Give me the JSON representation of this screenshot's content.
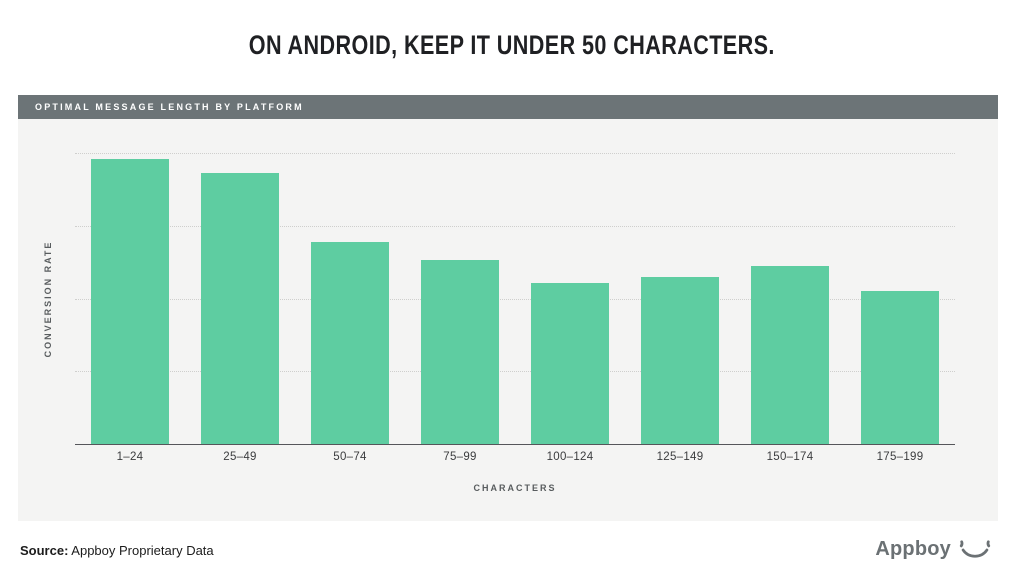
{
  "title": "ON ANDROID, KEEP IT UNDER 50 CHARACTERS.",
  "panel": {
    "header": "OPTIMAL MESSAGE LENGTH BY PLATFORM"
  },
  "chart_data": {
    "type": "bar",
    "title": "Optimal Message Length by Platform",
    "categories": [
      "1–24",
      "25–49",
      "50–74",
      "75–99",
      "100–124",
      "125–149",
      "150–174",
      "175–199"
    ],
    "values": [
      3.92,
      3.73,
      2.77,
      2.53,
      2.22,
      2.29,
      2.45,
      2.11
    ],
    "xlabel": "CHARACTERS",
    "ylabel": "CONVERSION RATE",
    "ylim": [
      0,
      4
    ],
    "y_tick_labels": "none — unlabeled dotted gridlines at 1, 2, 3, 4 units",
    "grid": "horizontal dotted lines",
    "legend": "none",
    "bar_color": "#5ecda1"
  },
  "footer": {
    "source_label": "Source:",
    "source_text": " Appboy Proprietary Data",
    "logo_text": "Appboy",
    "logo_icon": "smiley-wink-icon"
  },
  "colors": {
    "panel_background": "#f4f4f3",
    "header_background": "#6c7477",
    "bar": "#5ecda1",
    "axis": "#55565a",
    "gridline": "#cfcfcd",
    "logo_gray": "#6b7174"
  }
}
